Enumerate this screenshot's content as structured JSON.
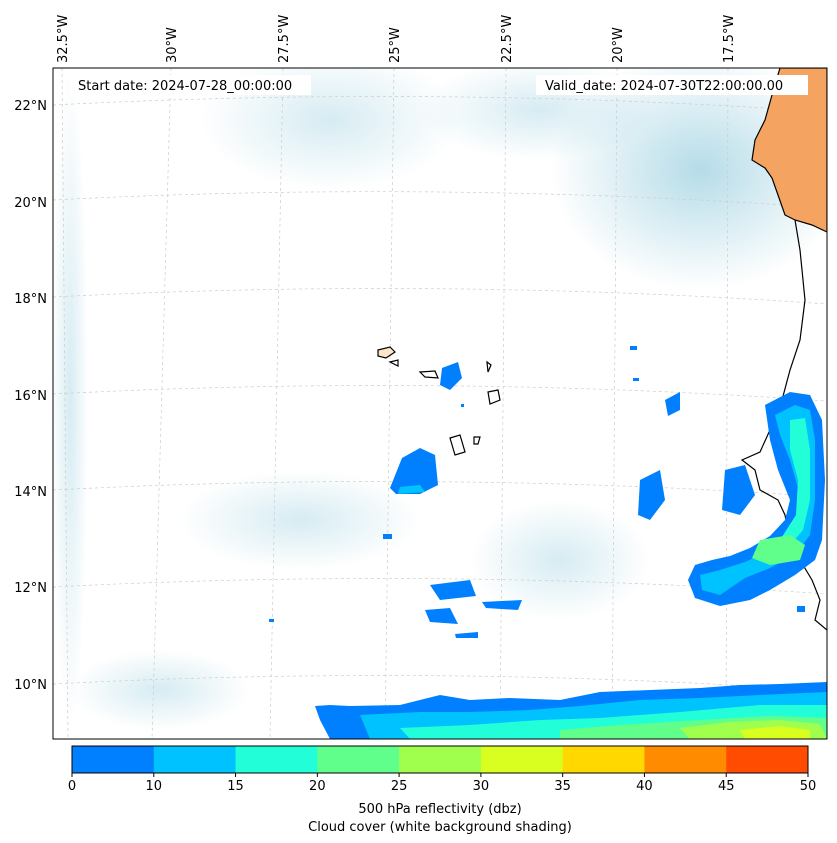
{
  "map": {
    "start_date": "Start date: 2024-07-28_00:00:00",
    "valid_date": "Valid_date: 2024-07-30T22:00:00.00",
    "lon_labels": [
      "32.5°W",
      "30°W",
      "27.5°W",
      "25°W",
      "22.5°W",
      "20°W",
      "17.5°W"
    ],
    "lat_labels": [
      "22°N",
      "20°N",
      "18°N",
      "16°N",
      "14°N",
      "12°N",
      "10°N"
    ],
    "land_color": "#f4a460",
    "cloud_color": "#add8e6"
  },
  "colorbar": {
    "ticks": [
      "0",
      "10",
      "15",
      "20",
      "25",
      "30",
      "35",
      "40",
      "45",
      "50"
    ],
    "colors": [
      "#0080ff",
      "#00c2ff",
      "#22ffd8",
      "#60ff8c",
      "#a0ff4c",
      "#d8ff20",
      "#ffd800",
      "#ff8c00",
      "#ff4c00"
    ],
    "label": "500 hPa reflectivity (dbz)",
    "sublabel": "Cloud cover (white background shading)"
  }
}
